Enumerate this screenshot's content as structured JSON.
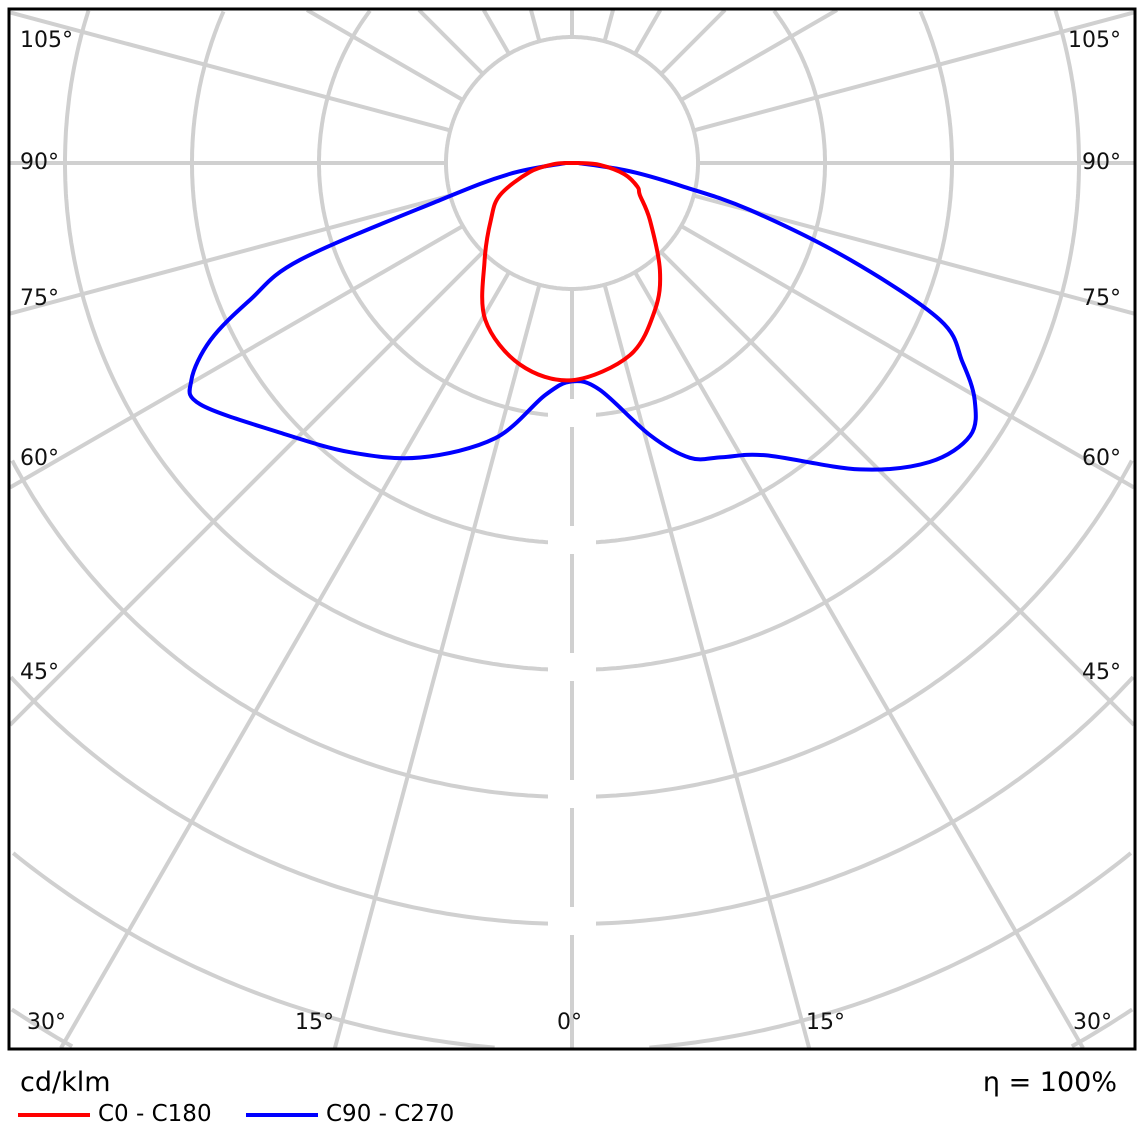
{
  "chart_data": {
    "type": "polar",
    "unit_label": "cd/klm",
    "efficiency_label": "η = 100%",
    "angle_labels_left": [
      "105°",
      "90°",
      "75°",
      "60°",
      "45°"
    ],
    "angle_labels_right": [
      "105°",
      "90°",
      "75°",
      "60°",
      "45°"
    ],
    "angle_labels_bottom": [
      "30°",
      "15°",
      "0°",
      "15°",
      "30°"
    ],
    "grid": true,
    "angle_step_deg": 15,
    "ring_count": 7,
    "series": [
      {
        "name": "C0 - C180",
        "color": "#ff0000",
        "right": [
          [
            0,
            1.71
          ],
          [
            16.8,
            1.58
          ],
          [
            29.4,
            1.33
          ],
          [
            39.4,
            1.09
          ],
          [
            53.8,
            0.76
          ],
          [
            64.8,
            0.59
          ],
          [
            70,
            0.55
          ],
          [
            78,
            0.42
          ],
          [
            86,
            0.22
          ],
          [
            90,
            0.05
          ]
        ],
        "left": [
          [
            0,
            1.71
          ],
          [
            14.4,
            1.64
          ],
          [
            29,
            1.41
          ],
          [
            41.9,
            1.03
          ],
          [
            55,
            0.78
          ],
          [
            66,
            0.62
          ],
          [
            78,
            0.34
          ],
          [
            86,
            0.15
          ],
          [
            90,
            0.05
          ]
        ]
      },
      {
        "name": "C90 - C270",
        "color": "#0000ff",
        "right": [
          [
            0,
            1.72
          ],
          [
            7,
            1.8
          ],
          [
            16,
            2.23
          ],
          [
            21.8,
            2.5
          ],
          [
            27,
            2.6
          ],
          [
            33.5,
            2.76
          ],
          [
            43.2,
            3.31
          ],
          [
            50.1,
            3.67
          ],
          [
            55.6,
            3.8
          ],
          [
            59.5,
            3.68
          ],
          [
            63,
            3.45
          ],
          [
            66.9,
            3.15
          ],
          [
            70.8,
            2.32
          ],
          [
            75.2,
            1.45
          ],
          [
            78,
            0.9
          ],
          [
            82,
            0.45
          ],
          [
            90,
            0.05
          ]
        ],
        "left": [
          [
            0,
            1.72
          ],
          [
            6.6,
            1.84
          ],
          [
            15.6,
            2.25
          ],
          [
            27.3,
            2.61
          ],
          [
            37.5,
            2.87
          ],
          [
            47.3,
            3.13
          ],
          [
            57,
            3.49
          ],
          [
            60.3,
            3.45
          ],
          [
            63.9,
            3.17
          ],
          [
            67,
            2.75
          ],
          [
            70.4,
            2.27
          ],
          [
            74.3,
            1.08
          ],
          [
            80,
            0.5
          ],
          [
            90,
            0.05
          ]
        ]
      }
    ]
  }
}
